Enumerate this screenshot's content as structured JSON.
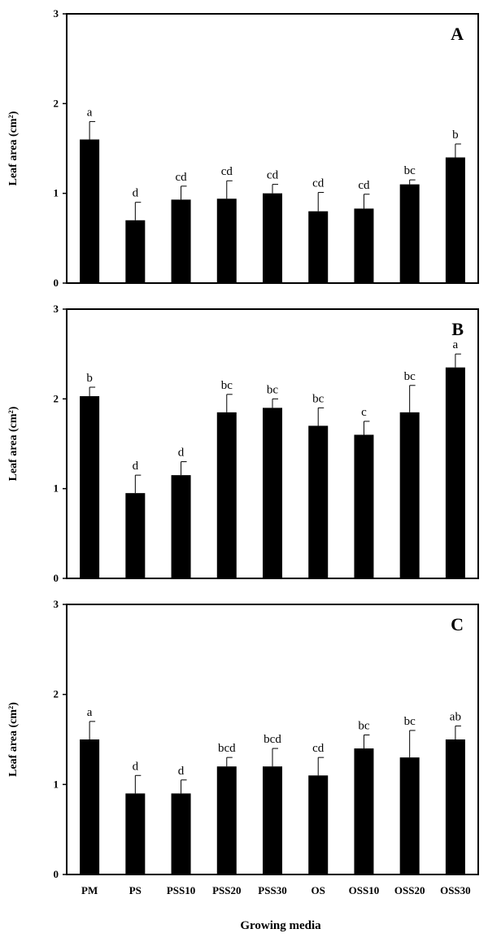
{
  "chart_data": [
    {
      "type": "bar",
      "panel_label": "A",
      "ylabel": "Leaf area (cm²)",
      "ylim": [
        0,
        3
      ],
      "yticks": [
        "0",
        "1",
        "2",
        "3"
      ],
      "categories": [
        "PM",
        "PS",
        "PSS10",
        "PSS20",
        "PSS30",
        "OS",
        "OSS10",
        "OSS20",
        "OSS30"
      ],
      "values": [
        1.6,
        0.7,
        0.93,
        0.94,
        1.0,
        0.8,
        0.83,
        1.1,
        1.4
      ],
      "errors": [
        0.2,
        0.2,
        0.15,
        0.2,
        0.1,
        0.21,
        0.16,
        0.05,
        0.15
      ],
      "significance": [
        "a",
        "d",
        "cd",
        "cd",
        "cd",
        "cd",
        "cd",
        "bc",
        "b"
      ],
      "bar_color": "#000000"
    },
    {
      "type": "bar",
      "panel_label": "B",
      "ylabel": "Leaf area (cm²)",
      "ylim": [
        0,
        3
      ],
      "yticks": [
        "0",
        "1",
        "2",
        "3"
      ],
      "categories": [
        "PM",
        "PS",
        "PSS10",
        "PSS20",
        "PSS30",
        "OS",
        "OSS10",
        "OSS20",
        "OSS30"
      ],
      "values": [
        2.03,
        0.95,
        1.15,
        1.85,
        1.9,
        1.7,
        1.6,
        1.85,
        2.35
      ],
      "errors": [
        0.1,
        0.2,
        0.15,
        0.2,
        0.1,
        0.2,
        0.15,
        0.3,
        0.15
      ],
      "significance": [
        "b",
        "d",
        "d",
        "bc",
        "bc",
        "bc",
        "c",
        "bc",
        "a"
      ],
      "bar_color": "#000000"
    },
    {
      "type": "bar",
      "panel_label": "C",
      "ylabel": "Leaf area (cm²)",
      "ylim": [
        0,
        3
      ],
      "yticks": [
        "0",
        "1",
        "2",
        "3"
      ],
      "categories": [
        "PM",
        "PS",
        "PSS10",
        "PSS20",
        "PSS30",
        "OS",
        "OSS10",
        "OSS20",
        "OSS30"
      ],
      "values": [
        1.5,
        0.9,
        0.9,
        1.2,
        1.2,
        1.1,
        1.4,
        1.3,
        1.5
      ],
      "errors": [
        0.2,
        0.2,
        0.15,
        0.1,
        0.2,
        0.2,
        0.15,
        0.3,
        0.15
      ],
      "significance": [
        "a",
        "d",
        "d",
        "bcd",
        "bcd",
        "cd",
        "bc",
        "bc",
        "ab"
      ],
      "bar_color": "#000000"
    }
  ],
  "xlabel": "Growing media"
}
